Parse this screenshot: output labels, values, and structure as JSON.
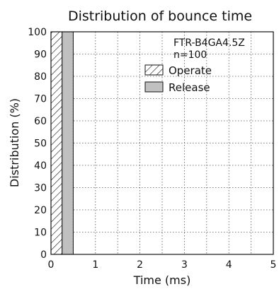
{
  "chart_data": {
    "type": "bar",
    "title": "Distribution of bounce time",
    "xlabel": "Time (ms)",
    "ylabel": "Distribution (%)",
    "xlim": [
      0,
      5
    ],
    "ylim": [
      0,
      100
    ],
    "x_ticks": [
      "0",
      "1",
      "2",
      "3",
      "4",
      "5"
    ],
    "y_ticks": [
      "0",
      "10",
      "20",
      "30",
      "40",
      "50",
      "60",
      "70",
      "80",
      "90",
      "100"
    ],
    "grid": true,
    "annotations": [
      "FTR-B4GA4.5Z",
      "n=100"
    ],
    "legend_position": "top-right",
    "series": [
      {
        "name": "Operate",
        "pattern": "hatched",
        "x_start": 0.0,
        "x_end": 0.25,
        "value": 100
      },
      {
        "name": "Release",
        "pattern": "solid",
        "color": "#c0c0c0",
        "x_start": 0.25,
        "x_end": 0.5,
        "value": 100
      }
    ]
  }
}
